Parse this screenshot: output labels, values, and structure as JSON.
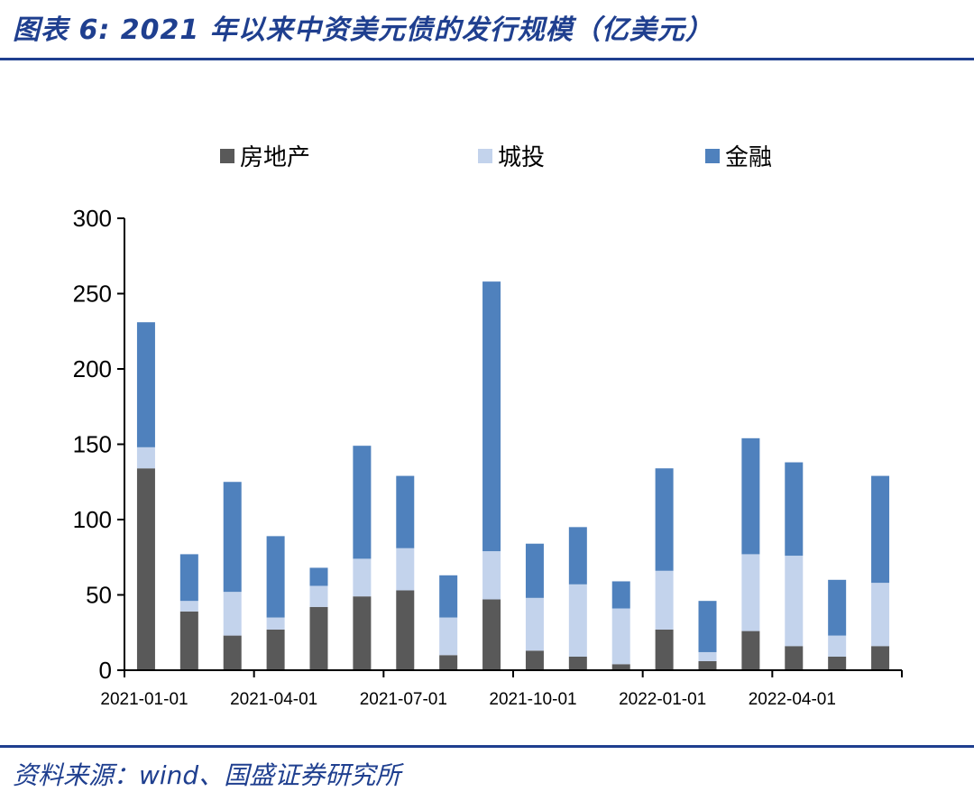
{
  "header": {
    "title": "图表 6:  2021 年以来中资美元债的发行规模（亿美元）"
  },
  "footer": {
    "source": "资料来源：wind、国盛证券研究所"
  },
  "colors": {
    "title": "#1f3f8f",
    "series": [
      "#595959",
      "#c3d3ec",
      "#4f81bd"
    ]
  },
  "chart_data": {
    "type": "bar",
    "stacked": true,
    "categories": [
      "2021-01",
      "2021-02",
      "2021-03",
      "2021-04",
      "2021-05",
      "2021-06",
      "2021-07",
      "2021-08",
      "2021-09",
      "2021-10",
      "2021-11",
      "2021-12",
      "2022-01",
      "2022-02",
      "2022-03",
      "2022-04",
      "2022-05",
      "2022-06"
    ],
    "x_tick_labels": [
      "2021-01-01",
      "2021-04-01",
      "2021-07-01",
      "2021-10-01",
      "2022-01-01",
      "2022-04-01"
    ],
    "x_tick_positions": [
      0,
      3,
      6,
      9,
      12,
      15
    ],
    "series": [
      {
        "name": "房地产",
        "values": [
          134,
          39,
          23,
          27,
          42,
          49,
          53,
          10,
          47,
          13,
          9,
          4,
          27,
          6,
          26,
          16,
          9,
          16
        ]
      },
      {
        "name": "城投",
        "values": [
          14,
          7,
          29,
          8,
          14,
          25,
          28,
          25,
          32,
          35,
          48,
          37,
          39,
          6,
          51,
          60,
          14,
          42
        ]
      },
      {
        "name": "金融",
        "values": [
          83,
          31,
          73,
          54,
          12,
          75,
          48,
          28,
          179,
          36,
          38,
          18,
          68,
          34,
          77,
          62,
          37,
          71
        ]
      }
    ],
    "ylim": [
      0,
      300
    ],
    "yticks": [
      0,
      50,
      100,
      150,
      200,
      250,
      300
    ],
    "xlabel": "",
    "ylabel": "",
    "legend_position": "top-center",
    "grid": false
  }
}
